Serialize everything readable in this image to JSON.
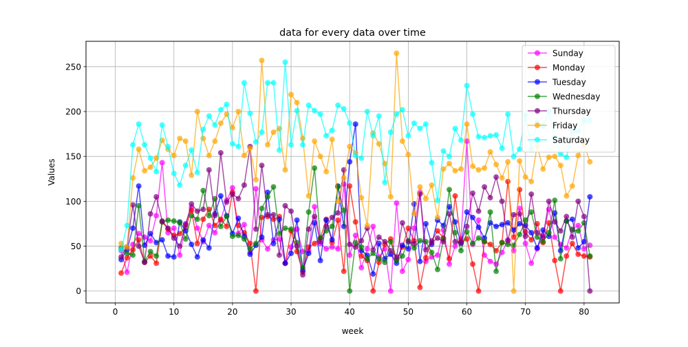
{
  "chart_data": {
    "type": "line",
    "title": "data for every data over time",
    "xlabel": "week",
    "ylabel": "Values",
    "xlim": [
      -5.0,
      86.0
    ],
    "ylim": [
      -13.25,
      278.25
    ],
    "xticks": [
      0,
      10,
      20,
      30,
      40,
      50,
      60,
      70,
      80
    ],
    "yticks": [
      0,
      50,
      100,
      150,
      200,
      250
    ],
    "grid": true,
    "legend_position": "top-right",
    "x": [
      1,
      2,
      3,
      4,
      5,
      6,
      7,
      8,
      9,
      10,
      11,
      12,
      13,
      14,
      15,
      16,
      17,
      18,
      19,
      20,
      21,
      22,
      23,
      24,
      25,
      26,
      27,
      28,
      29,
      30,
      31,
      32,
      33,
      34,
      35,
      36,
      37,
      38,
      39,
      40,
      41,
      42,
      43,
      44,
      45,
      46,
      47,
      48,
      49,
      50,
      51,
      52,
      53,
      54,
      55,
      56,
      57,
      58,
      59,
      60,
      61,
      62,
      63,
      64,
      65,
      66,
      67,
      68,
      69,
      70,
      71,
      72,
      73,
      74,
      75,
      76,
      77,
      78,
      79,
      80,
      81
    ],
    "series": [
      {
        "name": "Sunday",
        "color": "#ff00ff",
        "values": [
          45,
          21,
          52,
          64,
          60,
          56,
          84,
          143,
          65,
          70,
          40,
          75,
          93,
          70,
          55,
          73,
          65,
          79,
          101,
          115,
          64,
          74,
          43,
          114,
          57,
          47,
          57,
          58,
          31,
          49,
          69,
          44,
          45,
          94,
          53,
          47,
          49,
          47,
          119,
          40,
          62,
          26,
          47,
          72,
          38,
          47,
          0,
          98,
          22,
          35,
          70,
          110,
          33,
          38,
          40,
          68,
          30,
          50,
          58,
          167,
          52,
          79,
          40,
          33,
          30,
          43,
          57,
          45,
          92,
          53,
          31,
          47,
          62,
          91,
          60,
          52,
          48,
          69,
          73,
          47,
          51
        ]
      },
      {
        "name": "Monday",
        "color": "#ff0000",
        "values": [
          20,
          37,
          46,
          57,
          32,
          39,
          31,
          77,
          69,
          62,
          64,
          71,
          90,
          53,
          80,
          91,
          73,
          80,
          72,
          110,
          73,
          65,
          53,
          0,
          82,
          83,
          80,
          83,
          31,
          67,
          44,
          21,
          49,
          53,
          59,
          80,
          54,
          79,
          22,
          117,
          77,
          39,
          34,
          0,
          32,
          52,
          58,
          35,
          49,
          70,
          56,
          4,
          37,
          56,
          67,
          59,
          36,
          106,
          55,
          58,
          30,
          0,
          55,
          52,
          45,
          54,
          122,
          60,
          113,
          66,
          57,
          75,
          54,
          76,
          34,
          0,
          39,
          53,
          41,
          39,
          38
        ]
      },
      {
        "name": "Tuesday",
        "color": "#0000ff",
        "values": [
          35,
          46,
          70,
          117,
          51,
          64,
          54,
          57,
          39,
          38,
          77,
          67,
          52,
          38,
          57,
          48,
          86,
          106,
          84,
          64,
          81,
          61,
          41,
          51,
          60,
          110,
          53,
          80,
          31,
          42,
          79,
          23,
          42,
          76,
          34,
          79,
          57,
          117,
          72,
          144,
          186,
          45,
          40,
          19,
          53,
          36,
          41,
          31,
          51,
          47,
          97,
          33,
          75,
          52,
          79,
          73,
          94,
          77,
          53,
          88,
          82,
          71,
          59,
          76,
          72,
          74,
          76,
          68,
          75,
          73,
          65,
          48,
          68,
          61,
          87,
          45,
          78,
          80,
          48,
          55,
          105
        ]
      },
      {
        "name": "Wednesday",
        "color": "#008000",
        "values": [
          48,
          42,
          40,
          95,
          33,
          44,
          39,
          77,
          79,
          78,
          76,
          58,
          84,
          80,
          112,
          84,
          103,
          72,
          83,
          61,
          62,
          58,
          47,
          53,
          92,
          105,
          116,
          64,
          70,
          69,
          54,
          26,
          88,
          137,
          59,
          67,
          72,
          116,
          90,
          0,
          54,
          49,
          36,
          42,
          36,
          32,
          55,
          34,
          39,
          56,
          48,
          56,
          55,
          43,
          24,
          58,
          113,
          65,
          45,
          66,
          53,
          59,
          55,
          88,
          22,
          54,
          52,
          51,
          63,
          79,
          88,
          60,
          55,
          65,
          101,
          36,
          78,
          68,
          67,
          76,
          39
        ]
      },
      {
        "name": "Thursday",
        "color": "#800080",
        "values": [
          38,
          49,
          96,
          50,
          32,
          86,
          105,
          78,
          70,
          59,
          50,
          74,
          97,
          89,
          91,
          135,
          84,
          154,
          99,
          108,
          103,
          118,
          161,
          69,
          140,
          85,
          85,
          40,
          95,
          89,
          50,
          18,
          69,
          83,
          55,
          72,
          82,
          87,
          135,
          52,
          49,
          56,
          70,
          46,
          60,
          55,
          45,
          38,
          76,
          55,
          53,
          108,
          46,
          54,
          59,
          55,
          86,
          55,
          54,
          72,
          109,
          89,
          116,
          104,
          127,
          100,
          56,
          85,
          86,
          61,
          108,
          65,
          60,
          100,
          77,
          67,
          83,
          60,
          100,
          83,
          0
        ]
      },
      {
        "name": "Friday",
        "color": "#ffa500",
        "values": [
          53,
          49,
          126,
          158,
          134,
          138,
          148,
          168,
          158,
          151,
          170,
          167,
          129,
          200,
          170,
          151,
          167,
          187,
          197,
          182,
          200,
          151,
          159,
          124,
          257,
          163,
          177,
          181,
          135,
          219,
          210,
          170,
          106,
          167,
          150,
          133,
          169,
          100,
          126,
          161,
          154,
          104,
          73,
          176,
          164,
          142,
          105,
          265,
          167,
          152,
          86,
          116,
          103,
          118,
          82,
          136,
          142,
          134,
          136,
          186,
          139,
          135,
          137,
          155,
          141,
          126,
          144,
          0,
          145,
          127,
          122,
          162,
          136,
          149,
          150,
          140,
          106,
          117,
          151,
          163,
          144
        ]
      },
      {
        "name": "Saturday",
        "color": "#00ffff",
        "values": [
          46,
          73,
          163,
          186,
          163,
          148,
          133,
          185,
          161,
          131,
          118,
          140,
          157,
          132,
          180,
          195,
          185,
          202,
          208,
          164,
          161,
          232,
          198,
          166,
          177,
          232,
          232,
          157,
          255,
          163,
          201,
          163,
          207,
          201,
          197,
          173,
          179,
          207,
          203,
          187,
          151,
          148,
          200,
          173,
          195,
          121,
          177,
          197,
          202,
          173,
          187,
          181,
          186,
          143,
          101,
          156,
          150,
          181,
          168,
          229,
          197,
          172,
          171,
          173,
          174,
          159,
          197,
          150,
          158,
          196,
          158,
          188,
          184,
          201,
          171,
          153,
          149,
          178,
          178,
          190,
          190
        ]
      }
    ]
  }
}
